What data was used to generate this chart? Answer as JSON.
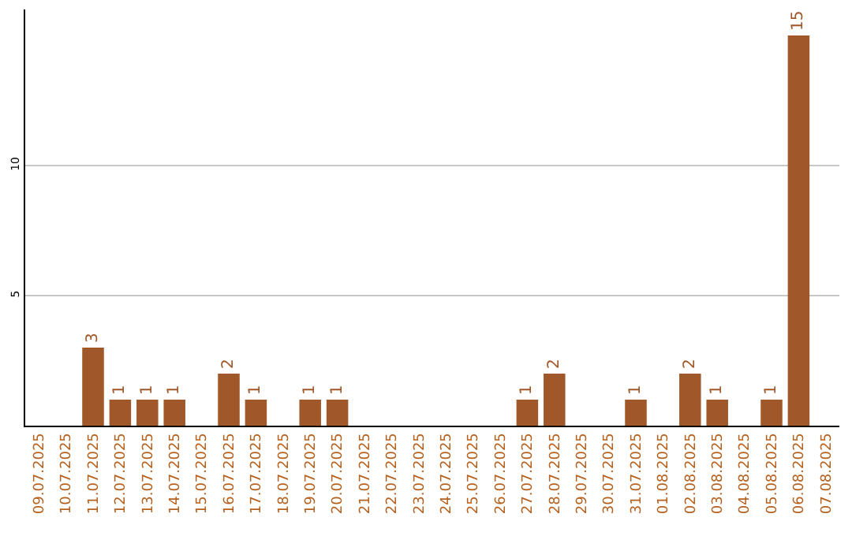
{
  "chart_data": {
    "type": "bar",
    "categories": [
      "09.07.2025",
      "10.07.2025",
      "11.07.2025",
      "12.07.2025",
      "13.07.2025",
      "14.07.2025",
      "15.07.2025",
      "16.07.2025",
      "17.07.2025",
      "18.07.2025",
      "19.07.2025",
      "20.07.2025",
      "21.07.2025",
      "22.07.2025",
      "23.07.2025",
      "24.07.2025",
      "25.07.2025",
      "26.07.2025",
      "27.07.2025",
      "28.07.2025",
      "29.07.2025",
      "30.07.2025",
      "31.07.2025",
      "01.08.2025",
      "02.08.2025",
      "03.08.2025",
      "04.08.2025",
      "05.08.2025",
      "06.08.2025",
      "07.08.2025"
    ],
    "values": [
      0,
      0,
      3,
      1,
      1,
      1,
      0,
      2,
      1,
      0,
      1,
      1,
      0,
      0,
      0,
      0,
      0,
      0,
      1,
      2,
      0,
      0,
      1,
      0,
      2,
      1,
      0,
      1,
      15,
      0
    ],
    "value_labels": [
      null,
      null,
      "3",
      "1",
      "1",
      "1",
      null,
      "2",
      "1",
      null,
      "1",
      "1",
      null,
      null,
      null,
      null,
      null,
      null,
      "1",
      "2",
      null,
      null,
      "1",
      null,
      "2",
      "1",
      null,
      "1",
      "15",
      null
    ],
    "color": "#a0582a",
    "ylim": [
      0,
      16
    ],
    "yticks": [
      5,
      10
    ],
    "grid": "y"
  }
}
